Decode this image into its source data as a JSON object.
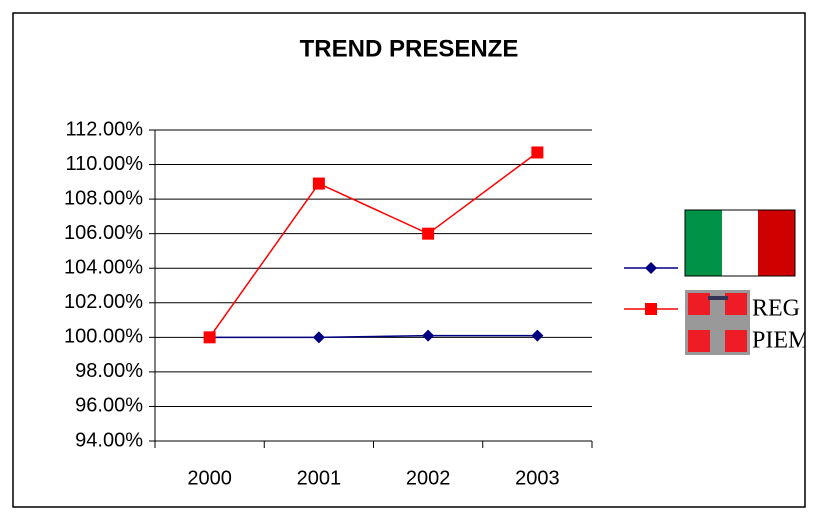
{
  "chart_data": {
    "type": "line",
    "title": "TREND PRESENZE",
    "categories": [
      "2000",
      "2001",
      "2002",
      "2003"
    ],
    "series": [
      {
        "color": "#000080",
        "marker": "diamond",
        "values": [
          100,
          100,
          100.1,
          100.1
        ]
      },
      {
        "color": "#ff0000",
        "marker": "square",
        "values": [
          100,
          108.9,
          106,
          110.7
        ]
      }
    ],
    "legend_text": [
      "REG",
      "PIEM"
    ],
    "ylim": [
      94,
      112
    ],
    "yticks": [
      {
        "value": 94,
        "label": "94.00%"
      },
      {
        "value": 96,
        "label": "96.00%"
      },
      {
        "value": 98,
        "label": "98.00%"
      },
      {
        "value": 100,
        "label": "100.00%"
      },
      {
        "value": 102,
        "label": "102.00%"
      },
      {
        "value": 104,
        "label": "104.00%"
      },
      {
        "value": 106,
        "label": "106.00%"
      },
      {
        "value": 108,
        "label": "108.00%"
      },
      {
        "value": 110,
        "label": "110.00%"
      },
      {
        "value": 112,
        "label": "112.00%"
      }
    ],
    "grid": true
  }
}
